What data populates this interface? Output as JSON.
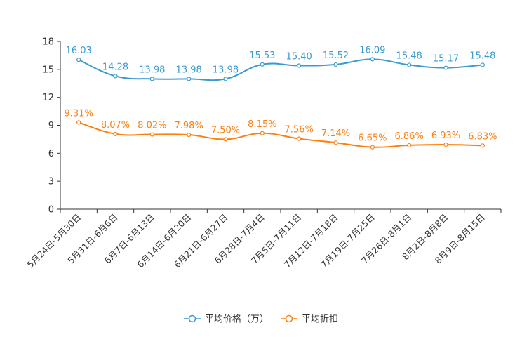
{
  "chart_data": {
    "type": "line",
    "title": "",
    "xlabel": "",
    "ylabel": "",
    "ylim": [
      0,
      18
    ],
    "yticks": [
      0,
      3,
      6,
      9,
      12,
      15,
      18
    ],
    "categories": [
      "5月24日-5月30日",
      "5月31日-6月6日",
      "6月7日-6月13日",
      "6月14日-6月20日",
      "6月21日-6月27日",
      "6月28日-7月4日",
      "7月5日-7月11日",
      "7月12日-7月18日",
      "7月19日-7月25日",
      "7月26日-8月1日",
      "8月2日-8月8日",
      "8月9日-8月15日"
    ],
    "series": [
      {
        "name": "平均价格（万）",
        "color": "#3a9bd0",
        "values": [
          16.03,
          14.28,
          13.98,
          13.98,
          13.98,
          15.53,
          15.4,
          15.52,
          16.09,
          15.48,
          15.17,
          15.48
        ],
        "labels": [
          "16.03",
          "14.28",
          "13.98",
          "13.98",
          "13.98",
          "15.53",
          "15.40",
          "15.52",
          "16.09",
          "15.48",
          "15.17",
          "15.48"
        ]
      },
      {
        "name": "平均折扣",
        "color": "#ff7f0e",
        "values": [
          9.31,
          8.07,
          8.02,
          7.98,
          7.5,
          8.15,
          7.56,
          7.14,
          6.65,
          6.86,
          6.93,
          6.83
        ],
        "labels": [
          "9.31%",
          "8.07%",
          "8.02%",
          "7.98%",
          "7.50%",
          "8.15%",
          "7.56%",
          "7.14%",
          "6.65%",
          "6.86%",
          "6.93%",
          "6.83%"
        ]
      }
    ],
    "legend": "bottom-center",
    "grid": false
  }
}
